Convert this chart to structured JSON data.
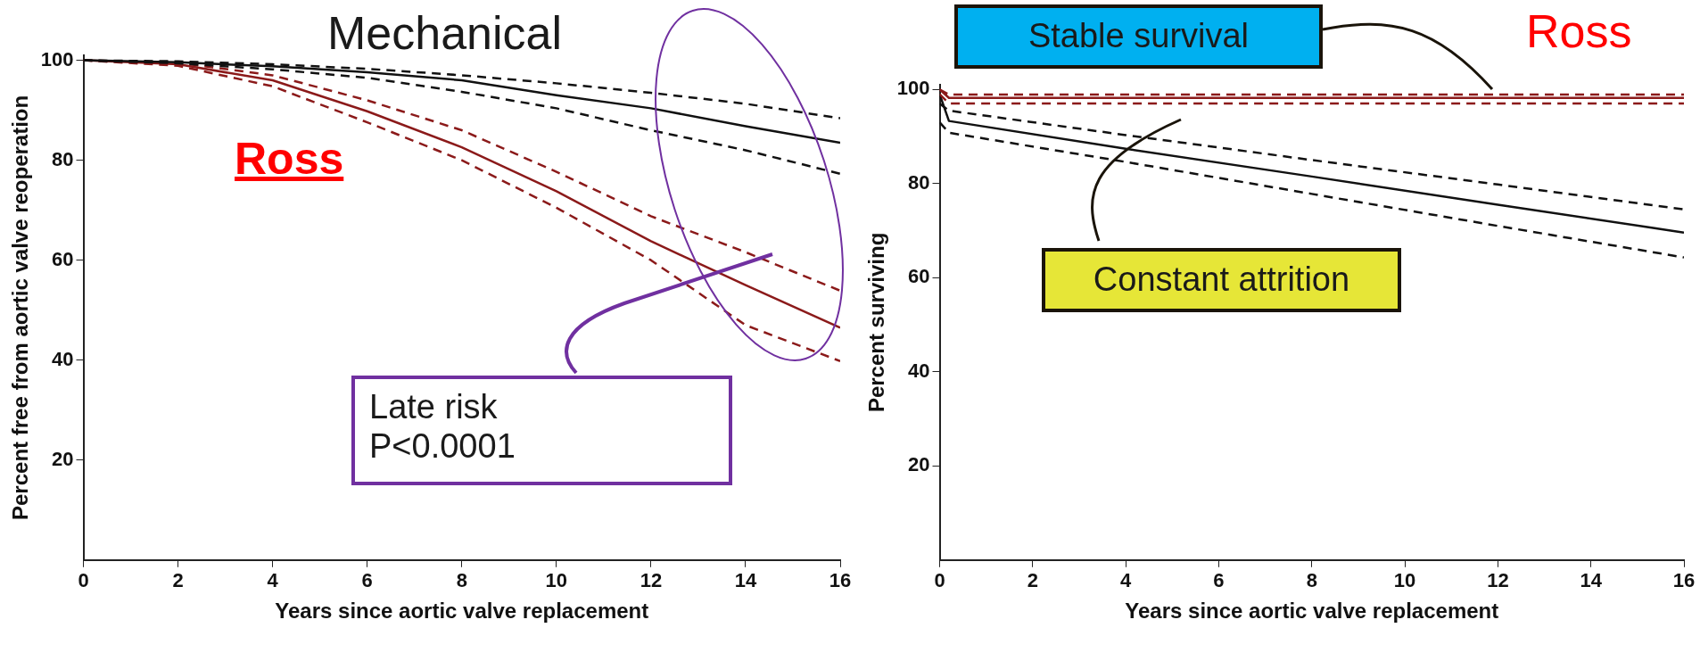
{
  "chart_data": [
    {
      "type": "line",
      "xlabel": "Years since aortic valve replacement",
      "ylabel": "Percent free from aortic valve reoperation",
      "xlim": [
        0,
        16
      ],
      "ylim": [
        0,
        101
      ],
      "xticks": [
        0,
        2,
        4,
        6,
        8,
        10,
        12,
        14,
        16
      ],
      "yticks": [
        20,
        40,
        60,
        80,
        100
      ],
      "grid": false,
      "legend": false,
      "marker": "none",
      "annotations": [
        "Mechanical",
        "Ross",
        "Late risk\nP<0.0001"
      ],
      "x": [
        0,
        2,
        4,
        6,
        8,
        10,
        12,
        14,
        16
      ],
      "series": [
        {
          "color": "#111111",
          "values": [
            100,
            99.6,
            98.8,
            97.6,
            96,
            93,
            90.4,
            86.8,
            83.5
          ]
        },
        {
          "color": "#111111",
          "line_style": "dashed",
          "values": [
            100,
            99.8,
            99.2,
            98.3,
            97,
            95.4,
            93.5,
            91.3,
            88.4
          ]
        },
        {
          "color": "#111111",
          "line_style": "dashed",
          "values": [
            100,
            99.4,
            98.2,
            96.5,
            93.7,
            90.4,
            86,
            82,
            77.3
          ]
        },
        {
          "color": "#8b1a1a",
          "values": [
            100,
            99.2,
            96,
            89.8,
            82.6,
            73.8,
            63.8,
            55,
            46.5
          ]
        },
        {
          "color": "#8b1a1a",
          "line_style": "dashed",
          "values": [
            100,
            99.5,
            97,
            92,
            86,
            77.7,
            68.8,
            61.6,
            53.9
          ]
        },
        {
          "color": "#8b1a1a",
          "line_style": "dashed",
          "values": [
            100,
            98.9,
            94.8,
            87.6,
            80,
            70.5,
            60,
            47,
            39.8
          ]
        }
      ]
    },
    {
      "type": "line",
      "xlabel": "Years since aortic valve replacement",
      "ylabel": "Percent surviving",
      "xlim": [
        0,
        16
      ],
      "ylim": [
        0,
        101
      ],
      "xticks": [
        0,
        2,
        4,
        6,
        8,
        10,
        12,
        14,
        16
      ],
      "yticks": [
        20,
        40,
        60,
        80,
        100
      ],
      "grid": false,
      "legend": false,
      "marker": "none",
      "annotations": [
        "Stable survival",
        "Ross",
        "Constant attrition"
      ],
      "x": [
        0,
        0.2,
        4,
        8,
        12,
        16
      ],
      "series": [
        {
          "color": "#8b1a1a",
          "values": [
            100,
            98.2,
            98.2,
            98.2,
            98.2,
            98.2
          ]
        },
        {
          "color": "#8b1a1a",
          "line_style": "dashed",
          "values": [
            100,
            98.9,
            98.9,
            98.9,
            98.9,
            98.9
          ]
        },
        {
          "color": "#8b1a1a",
          "line_style": "dashed",
          "values": [
            99,
            97,
            97,
            97,
            97,
            97
          ]
        },
        {
          "color": "#111111",
          "values": [
            99,
            93.3,
            87.4,
            81.5,
            75.5,
            69.6
          ]
        },
        {
          "color": "#111111",
          "line_style": "dashed",
          "values": [
            97,
            95.5,
            90.3,
            85,
            79.8,
            74.5
          ]
        },
        {
          "color": "#111111",
          "line_style": "dashed",
          "values": [
            93,
            90.8,
            84.6,
            77.8,
            71,
            64.3
          ]
        }
      ]
    }
  ]
}
